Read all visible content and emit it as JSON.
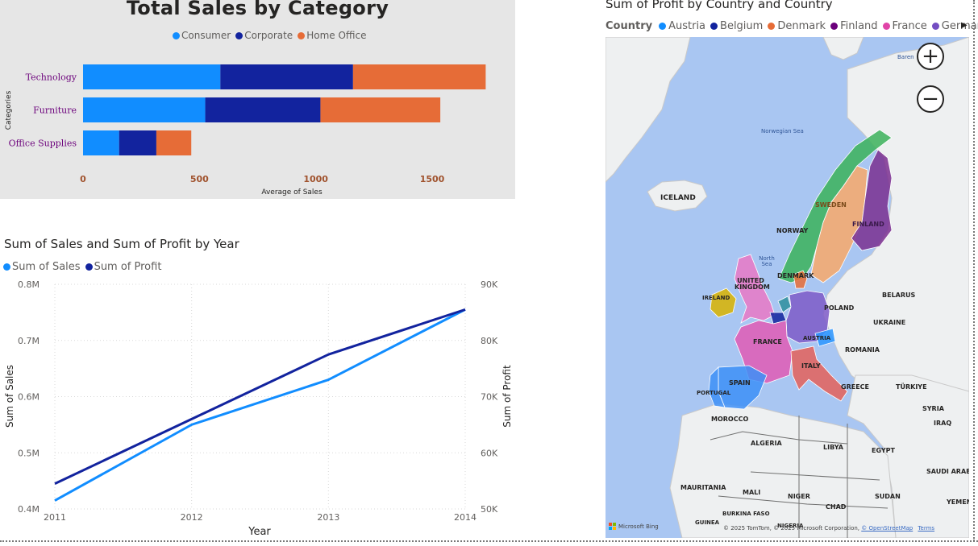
{
  "bar_chart": {
    "title": "Total Sales by Category",
    "legend": [
      {
        "name": "Consumer",
        "color": "#118dff"
      },
      {
        "name": "Corporate",
        "color": "#12239e"
      },
      {
        "name": "Home Office",
        "color": "#e66c37"
      }
    ],
    "chart_data": {
      "type": "bar",
      "orientation": "horizontal",
      "stacked": true,
      "categories": [
        "Technology",
        "Furniture",
        "Office Supplies"
      ],
      "series": [
        {
          "name": "Consumer",
          "values": [
            590,
            525,
            155
          ]
        },
        {
          "name": "Corporate",
          "values": [
            570,
            495,
            160
          ]
        },
        {
          "name": "Home Office",
          "values": [
            570,
            515,
            150
          ]
        }
      ],
      "xlabel": "Average of Sales",
      "ylabel": "Categories",
      "xticks": [
        "0",
        "500",
        "1000",
        "1500"
      ],
      "xlim": [
        0,
        1700
      ],
      "grid": false
    }
  },
  "line_chart": {
    "title": "Sum of Sales and Sum of Profit by Year",
    "legend": [
      {
        "name": "Sum of Sales",
        "color": "#118dff"
      },
      {
        "name": "Sum of Profit",
        "color": "#12239e"
      }
    ],
    "chart_data": {
      "type": "line",
      "x": [
        "2011",
        "2012",
        "2013",
        "2014"
      ],
      "series": [
        {
          "name": "Sum of Sales",
          "axis": "left",
          "values": [
            0.415,
            0.55,
            0.63,
            0.755
          ],
          "color": "#118dff"
        },
        {
          "name": "Sum of Profit",
          "axis": "right",
          "values": [
            54500,
            66000,
            77500,
            85500
          ],
          "color": "#12239e"
        }
      ],
      "xlabel": "Year",
      "ylabel": "Sum of Sales",
      "y2label": "Sum of Profit",
      "ylim": [
        0.4,
        0.8
      ],
      "y2lim": [
        50000,
        90000
      ],
      "yticks": [
        "0.4M",
        "0.5M",
        "0.6M",
        "0.7M",
        "0.8M"
      ],
      "y2ticks": [
        "50K",
        "60K",
        "70K",
        "80K",
        "90K"
      ],
      "grid": true
    }
  },
  "map": {
    "title": "Sum of Profit by Country and Country",
    "legend_label": "Country",
    "legend": [
      {
        "name": "Austria",
        "color": "#118dff"
      },
      {
        "name": "Belgium",
        "color": "#12239e"
      },
      {
        "name": "Denmark",
        "color": "#e66c37"
      },
      {
        "name": "Finland",
        "color": "#6b007b"
      },
      {
        "name": "France",
        "color": "#e044a7"
      },
      {
        "name": "Germany",
        "color": "#744ec2"
      }
    ],
    "country_colors": {
      "norway": "#3bb25a",
      "sweden": "#f8a86a",
      "finland": "#7a2f91",
      "uk": "#e978c6",
      "ireland": "#d9b300",
      "denmark": "#e66c37",
      "netherlands": "#2e8e9e",
      "belgium": "#12239e",
      "germany": "#7e5bc8",
      "france": "#e05bb5",
      "austria": "#2a95ff",
      "italy": "#e4605a",
      "spain": "#3d8ff7",
      "portugal": "#3d8ff7"
    },
    "labels": {
      "iceland": "ICELAND",
      "norwegian_sea": "Norwegian Sea",
      "norway": "NORWAY",
      "sweden": "SWEDEN",
      "finland": "FINLAND",
      "north_sea": "North Sea",
      "uk": "UNITED KINGDOM",
      "ireland": "IRELAND",
      "denmark": "DENMARK",
      "poland": "POLAND",
      "belarus": "BELARUS",
      "ukraine": "UKRAINE",
      "france": "FRANCE",
      "austria": "AUSTRIA",
      "romania": "ROMANIA",
      "italy": "ITALY",
      "spain": "SPAIN",
      "portugal": "PORTUGAL",
      "greece": "GREECE",
      "turkiye": "TÜRKIYE",
      "syria": "SYRIA",
      "iraq": "IRAQ",
      "morocco": "MOROCCO",
      "algeria": "ALGERIA",
      "libya": "LIBYA",
      "egypt": "EGYPT",
      "saudi": "SAUDI ARAB",
      "mauritania": "MAURITANIA",
      "mali": "MALI",
      "niger": "NIGER",
      "chad": "CHAD",
      "sudan": "SUDAN",
      "yemen": "YEMEN",
      "burkina": "BURKINA FASO",
      "guinea": "GUINEA",
      "nigeria": "NIGERIA",
      "barents": "Baren"
    },
    "zoom_in": "+",
    "zoom_out": "−",
    "legend_more": "▶",
    "attribution": {
      "bing": "Microsoft Bing",
      "copyright": "© 2025 TomTom, © 2025 Microsoft Corporation,",
      "osm": "© OpenStreetMap",
      "terms": "Terms"
    }
  }
}
